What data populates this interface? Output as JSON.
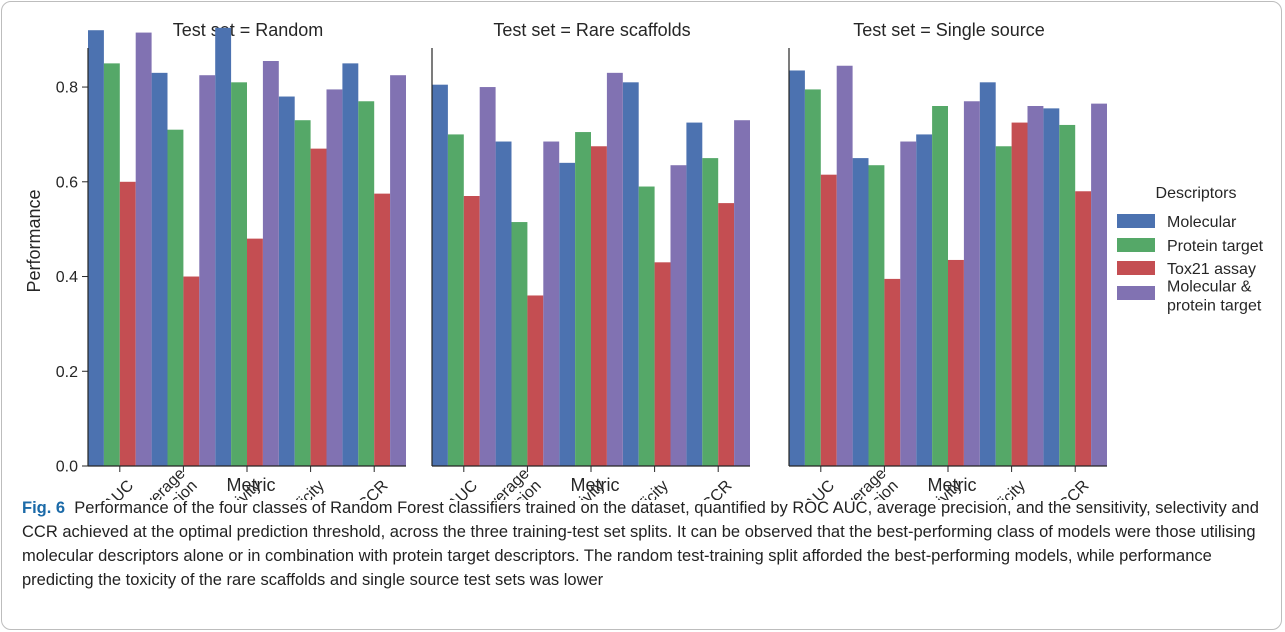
{
  "chart_data": {
    "type": "bar",
    "ylabel": "Performance",
    "xlabel": "Metric",
    "ylim": [
      0,
      0.95
    ],
    "yticks": [
      "0.0",
      "0.2",
      "0.4",
      "0.6",
      "0.8"
    ],
    "categories": [
      "ROC AUC",
      "Average\nprecision",
      "Sensitivity",
      "Specificity",
      "CCR"
    ],
    "legend_title": "Descriptors",
    "legend_position": "right",
    "series": [
      {
        "name": "Molecular",
        "color": "#4c72b0"
      },
      {
        "name": "Protein target",
        "color": "#55a868"
      },
      {
        "name": "Tox21 assay",
        "color": "#c44e52"
      },
      {
        "name": "Molecular & protein target",
        "color": "#8172b2"
      }
    ],
    "panels": [
      {
        "title": "Test set = Random",
        "values": [
          [
            0.92,
            0.83,
            0.925,
            0.78,
            0.85
          ],
          [
            0.85,
            0.71,
            0.81,
            0.73,
            0.77
          ],
          [
            0.6,
            0.4,
            0.48,
            0.67,
            0.575
          ],
          [
            0.915,
            0.825,
            0.855,
            0.795,
            0.825
          ]
        ]
      },
      {
        "title": "Test set = Rare scaffolds",
        "values": [
          [
            0.805,
            0.685,
            0.64,
            0.81,
            0.725
          ],
          [
            0.7,
            0.515,
            0.705,
            0.59,
            0.65
          ],
          [
            0.57,
            0.36,
            0.675,
            0.43,
            0.555
          ],
          [
            0.8,
            0.685,
            0.83,
            0.635,
            0.73
          ]
        ]
      },
      {
        "title": "Test set = Single source",
        "values": [
          [
            0.835,
            0.65,
            0.7,
            0.81,
            0.755
          ],
          [
            0.795,
            0.635,
            0.76,
            0.675,
            0.72
          ],
          [
            0.615,
            0.395,
            0.435,
            0.725,
            0.58
          ],
          [
            0.845,
            0.685,
            0.77,
            0.76,
            0.765
          ]
        ]
      }
    ]
  },
  "caption": {
    "label": "Fig. 6",
    "text": "Performance of the four classes of Random Forest classifiers trained on the dataset, quantified by ROC AUC, average precision, and the sensitivity, selectivity and CCR achieved at the optimal prediction threshold, across the three training-test set splits. It can be observed that the best-performing class of models were those utilising molecular descriptors alone or in combination with protein target descriptors. The random test-training split afforded the best-performing models, while performance predicting the toxicity of the rare scaffolds and single source test sets was lower"
  }
}
